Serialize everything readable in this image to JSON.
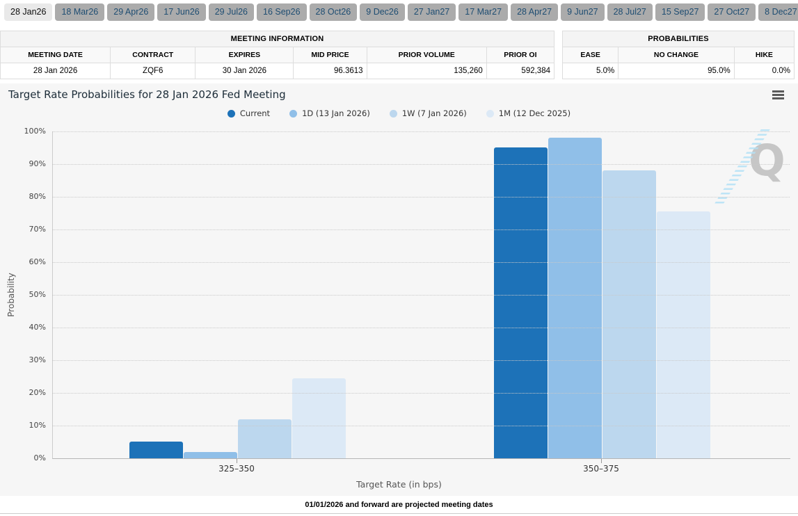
{
  "tabs": {
    "items": [
      {
        "label": "28 Jan26",
        "selected": true
      },
      {
        "label": "18 Mar26",
        "selected": false
      },
      {
        "label": "29 Apr26",
        "selected": false
      },
      {
        "label": "17 Jun26",
        "selected": false
      },
      {
        "label": "29 Jul26",
        "selected": false
      },
      {
        "label": "16 Sep26",
        "selected": false
      },
      {
        "label": "28 Oct26",
        "selected": false
      },
      {
        "label": "9 Dec26",
        "selected": false
      },
      {
        "label": "27 Jan27",
        "selected": false
      },
      {
        "label": "17 Mar27",
        "selected": false
      },
      {
        "label": "28 Apr27",
        "selected": false
      },
      {
        "label": "9 Jun27",
        "selected": false
      },
      {
        "label": "28 Jul27",
        "selected": false
      },
      {
        "label": "15 Sep27",
        "selected": false
      },
      {
        "label": "27 Oct27",
        "selected": false
      },
      {
        "label": "8 Dec27",
        "selected": false
      }
    ]
  },
  "meeting_info": {
    "title": "MEETING INFORMATION",
    "columns": [
      "MEETING DATE",
      "CONTRACT",
      "EXPIRES",
      "MID PRICE",
      "PRIOR VOLUME",
      "PRIOR OI"
    ],
    "row": [
      "28 Jan 2026",
      "ZQF6",
      "30 Jan 2026",
      "96.3613",
      "135,260",
      "592,384"
    ]
  },
  "probabilities": {
    "title": "PROBABILITIES",
    "columns": [
      "EASE",
      "NO CHANGE",
      "HIKE"
    ],
    "row": [
      "5.0%",
      "95.0%",
      "0.0%"
    ]
  },
  "chart": {
    "title": "Target Rate Probabilities for 28 Jan 2026 Fed Meeting",
    "watermark_letter": "Q"
  },
  "chart_data": {
    "type": "bar",
    "title": "Target Rate Probabilities for 28 Jan 2026 Fed Meeting",
    "categories": [
      "325–350",
      "350–375"
    ],
    "series": [
      {
        "name": "Current",
        "color": "#1d72b8",
        "values": [
          5,
          95
        ]
      },
      {
        "name": "1D (13 Jan 2026)",
        "color": "#90bfe8",
        "values": [
          2,
          98
        ]
      },
      {
        "name": "1W (7 Jan 2026)",
        "color": "#bcd7ee",
        "values": [
          12,
          88
        ]
      },
      {
        "name": "1M (12 Dec 2025)",
        "color": "#dce9f6",
        "values": [
          24.5,
          75.5
        ]
      }
    ],
    "xlabel": "Target Rate (in bps)",
    "ylabel": "Probability",
    "ylim": [
      0,
      100
    ],
    "ytick_step": 10,
    "ytick_format": "percent",
    "grid": "dotted-horizontal",
    "legend_position": "top-center",
    "background": "#f6f6f6"
  },
  "footer": {
    "note": "01/01/2026 and forward are projected meeting dates"
  }
}
